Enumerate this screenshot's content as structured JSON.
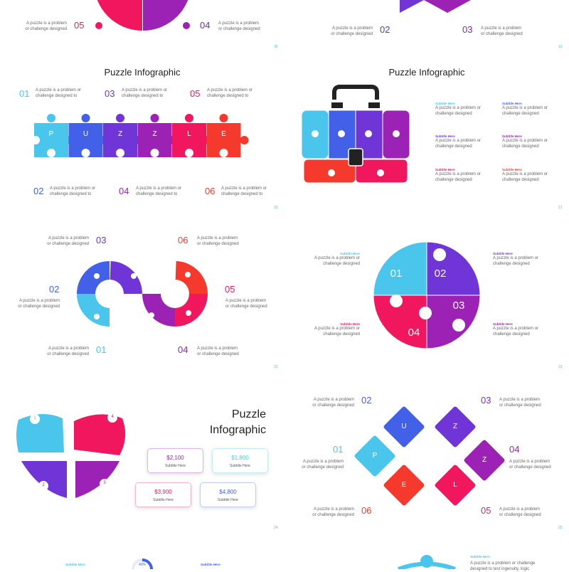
{
  "colors": {
    "cyan": "#4ac6ec",
    "blue": "#4361e8",
    "violet": "#6f35d6",
    "purple": "#9b22b4",
    "pink": "#f0175f",
    "red": "#f53a2d",
    "dark": "#222222"
  },
  "desc": "A puzzle is a problem or challenge designed",
  "desc_l1": "A puzzle is a problem",
  "desc_l2": "or challenge designed",
  "desc2_l1": "A puzzle is a problem or",
  "desc2_l2": "challenge designed to",
  "desc3_l2": "challenge designed",
  "subtitle": "Subtitle Here",
  "slide18": {
    "page": "18",
    "left_num": "05",
    "right_num": "04"
  },
  "slide19": {
    "page": "19",
    "left_num": "02",
    "right_num": "03"
  },
  "slide20": {
    "page": "20",
    "title": "Puzzle Infographic",
    "letters": [
      "P",
      "U",
      "Z",
      "Z",
      "L",
      "E"
    ],
    "top_nums": [
      "01",
      "03",
      "05"
    ],
    "bottom_nums": [
      "02",
      "04",
      "06"
    ]
  },
  "slide21": {
    "page": "21",
    "title": "Puzzle Infographic",
    "icons": [
      "pie-chart-icon",
      "globe-icon",
      "people-icon",
      "chart-icon",
      "clock-icon",
      "clock-document-icon"
    ]
  },
  "slide22": {
    "page": "22",
    "nums": [
      "01",
      "02",
      "03",
      "04",
      "05",
      "06"
    ]
  },
  "slide23": {
    "page": "23",
    "nums": [
      "01",
      "02",
      "03",
      "04"
    ]
  },
  "slide24": {
    "page": "24",
    "title_l1": "Puzzle",
    "title_l2": "Infographic",
    "heart_nums": [
      "1",
      "2",
      "3",
      "4"
    ],
    "cards": [
      {
        "value": "$2,100",
        "label": "Subtitle Here",
        "color": "#9b22b4"
      },
      {
        "value": "$1,800",
        "label": "Subtitle Here",
        "color": "#4ac6ec"
      },
      {
        "value": "$3,900",
        "label": "Subtitle Here",
        "color": "#f0175f"
      },
      {
        "value": "$4,800",
        "label": "Subtitle Here",
        "color": "#4361e8"
      }
    ]
  },
  "slide25": {
    "page": "25",
    "letters": [
      "P",
      "U",
      "Z",
      "Z",
      "L",
      "E"
    ],
    "nums": [
      "01",
      "02",
      "03",
      "04",
      "05",
      "06"
    ]
  },
  "slide26": {
    "progress_label": "40%",
    "progress": 0.4
  },
  "slide27": {
    "text": "A puzzle is a problem or challenge",
    "text2": "designed to test ingenuity, logic"
  }
}
